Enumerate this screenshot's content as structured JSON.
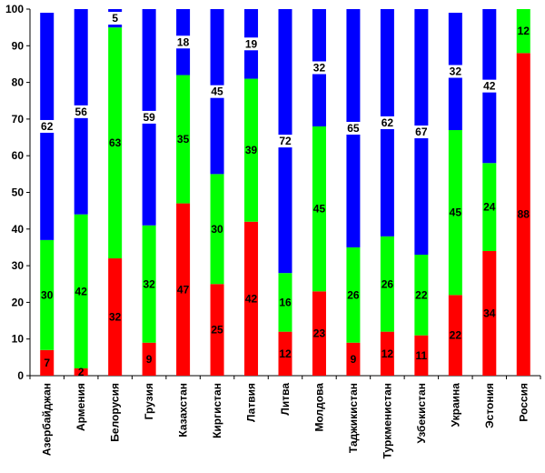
{
  "chart_data": {
    "type": "bar",
    "stacked": true,
    "title": "",
    "xlabel": "",
    "ylabel": "",
    "ylim": [
      0,
      100
    ],
    "yticks": [
      "0",
      "10",
      "20",
      "30",
      "40",
      "50",
      "60",
      "70",
      "80",
      "90",
      "100"
    ],
    "grid": false,
    "legend": "none",
    "categories": [
      "Азербайджан",
      "Армения",
      "Белорусия",
      "Грузия",
      "Казахстан",
      "Киргистан",
      "Латвия",
      "Литва",
      "Молдова",
      "Таджикистан",
      "Туркменистан",
      "Узбекистан",
      "Украина",
      "Эстония",
      "Россия"
    ],
    "series": [
      {
        "name": "red",
        "color": "#ff0000",
        "values": [
          7,
          2,
          32,
          9,
          47,
          25,
          42,
          12,
          23,
          9,
          12,
          11,
          22,
          34,
          88
        ]
      },
      {
        "name": "green",
        "color": "#00ff00",
        "values": [
          30,
          42,
          63,
          32,
          35,
          30,
          39,
          16,
          45,
          26,
          26,
          22,
          45,
          24,
          12
        ]
      },
      {
        "name": "blue",
        "color": "#0000ff",
        "values": [
          62,
          56,
          5,
          59,
          18,
          45,
          19,
          72,
          32,
          65,
          62,
          67,
          32,
          42,
          null
        ]
      }
    ]
  }
}
